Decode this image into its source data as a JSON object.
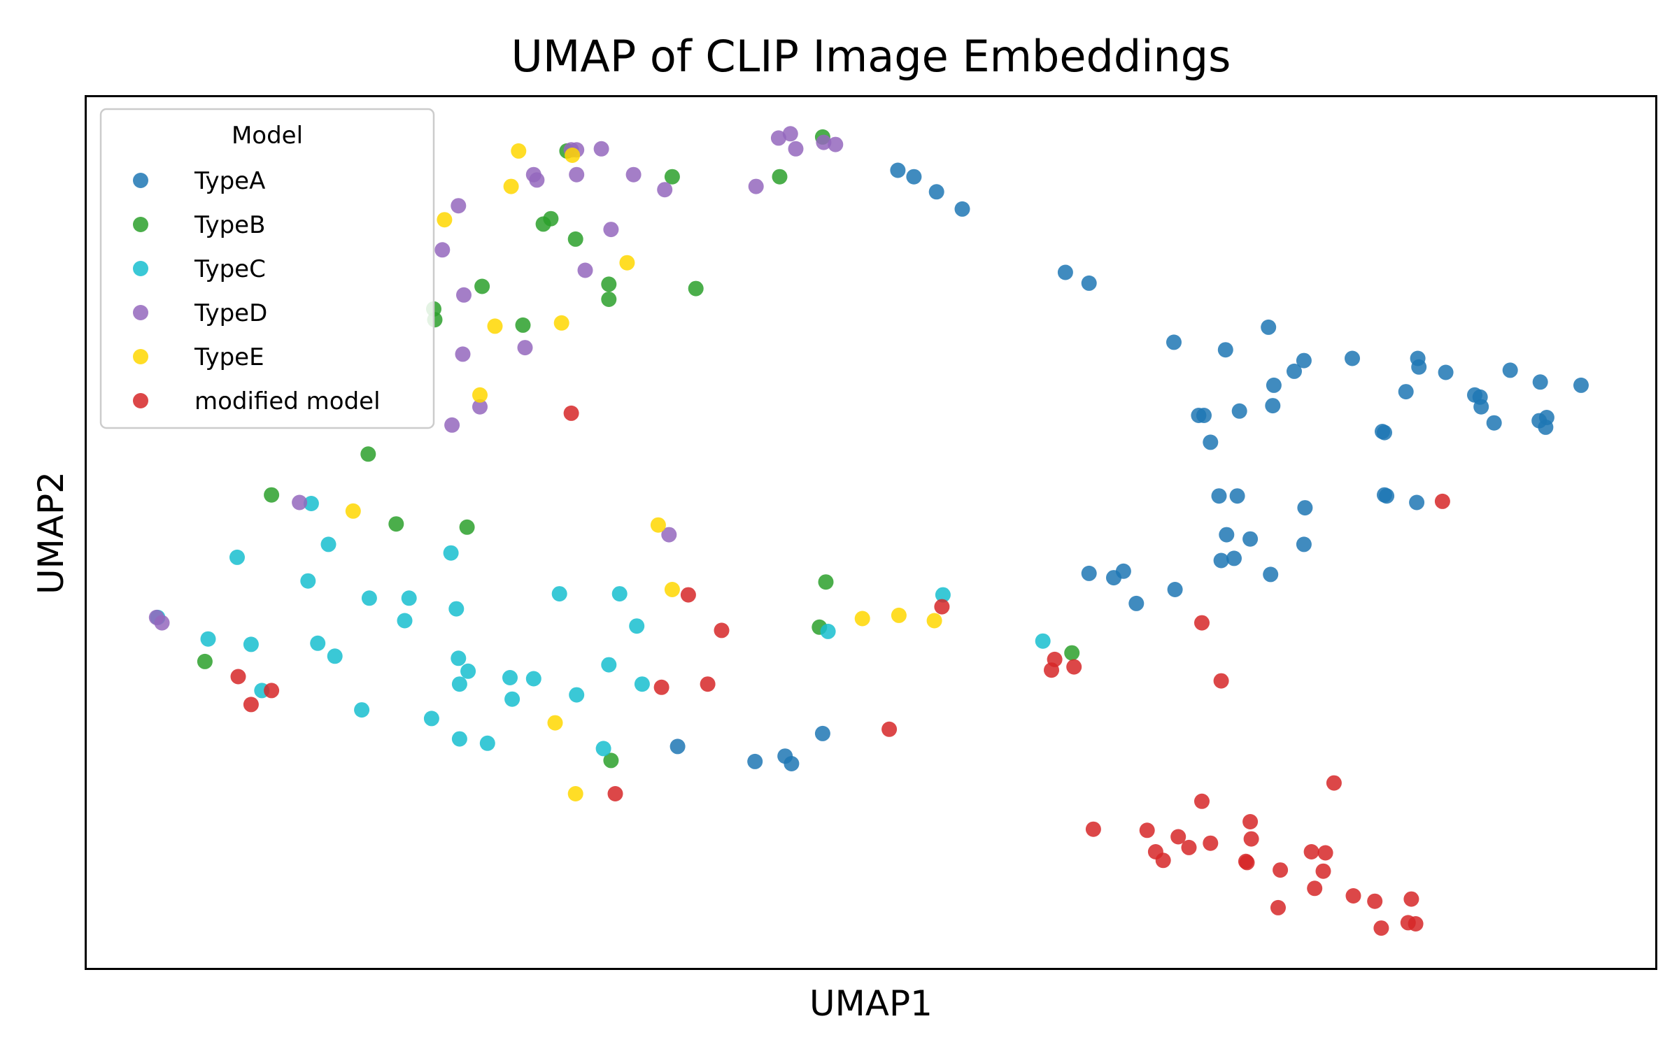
{
  "chart_data": {
    "type": "scatter",
    "title": "UMAP of CLIP Image Embeddings",
    "xlabel": "UMAP1",
    "ylabel": "UMAP2",
    "xlim": [
      0,
      1460
    ],
    "ylim": [
      0,
      810
    ],
    "ticks": "none",
    "grid": false,
    "legend": {
      "title": "Model",
      "placement": "top-left"
    },
    "series": [
      {
        "name": "TypeA",
        "color": "#1f77b4",
        "points": [
          [
            755,
            742
          ],
          [
            770,
            736
          ],
          [
            791,
            722
          ],
          [
            815,
            706
          ],
          [
            911,
            647
          ],
          [
            933,
            637
          ],
          [
            1012,
            582
          ],
          [
            1060,
            575
          ],
          [
            1100,
            596
          ],
          [
            1124,
            555
          ],
          [
            1105,
            542
          ],
          [
            1073,
            518
          ],
          [
            1104,
            523
          ],
          [
            1133,
            565
          ],
          [
            1178,
            567
          ],
          [
            1239,
            567
          ],
          [
            1240,
            559
          ],
          [
            1297,
            531
          ],
          [
            1265,
            554
          ],
          [
            1325,
            556
          ],
          [
            1353,
            545
          ],
          [
            1352,
            509
          ],
          [
            1292,
            533
          ],
          [
            1228,
            536
          ],
          [
            1298,
            522
          ],
          [
            1391,
            542
          ],
          [
            1035,
            514
          ],
          [
            1040,
            514
          ],
          [
            1046,
            489
          ],
          [
            1358,
            503
          ],
          [
            1359,
            512
          ],
          [
            1310,
            507
          ],
          [
            1206,
            499
          ],
          [
            1208,
            498
          ],
          [
            1054,
            439
          ],
          [
            1071,
            439
          ],
          [
            1134,
            428
          ],
          [
            1208,
            440
          ],
          [
            1238,
            433
          ],
          [
            1210,
            439
          ],
          [
            1061,
            403
          ],
          [
            1083,
            399
          ],
          [
            1133,
            394
          ],
          [
            1056,
            379
          ],
          [
            1068,
            381
          ],
          [
            1102,
            366
          ],
          [
            933,
            367
          ],
          [
            956,
            363
          ],
          [
            965,
            369
          ],
          [
            1013,
            352
          ],
          [
            977,
            339
          ],
          [
            550,
            206
          ],
          [
            622,
            192
          ],
          [
            650,
            197
          ],
          [
            656,
            190
          ],
          [
            685,
            218
          ]
        ]
      },
      {
        "name": "TypeB",
        "color": "#2ca02c",
        "points": [
          [
            447,
            760
          ],
          [
            545,
            736
          ],
          [
            685,
            773
          ],
          [
            645,
            736
          ],
          [
            425,
            692
          ],
          [
            432,
            697
          ],
          [
            455,
            678
          ],
          [
            486,
            636
          ],
          [
            567,
            632
          ],
          [
            323,
            613
          ],
          [
            324,
            603
          ],
          [
            406,
            598
          ],
          [
            368,
            634
          ],
          [
            486,
            622
          ],
          [
            262,
            478
          ],
          [
            172,
            440
          ],
          [
            288,
            413
          ],
          [
            354,
            410
          ],
          [
            688,
            359
          ],
          [
            682,
            317
          ],
          [
            917,
            293
          ],
          [
            110,
            285
          ],
          [
            488,
            193
          ]
        ]
      },
      {
        "name": "TypeC",
        "color": "#17becf",
        "points": [
          [
            209,
            432
          ],
          [
            225,
            394
          ],
          [
            140,
            382
          ],
          [
            206,
            360
          ],
          [
            339,
            386
          ],
          [
            263,
            344
          ],
          [
            300,
            344
          ],
          [
            496,
            348
          ],
          [
            344,
            334
          ],
          [
            440,
            348
          ],
          [
            296,
            323
          ],
          [
            512,
            318
          ],
          [
            66,
            326
          ],
          [
            113,
            306
          ],
          [
            153,
            301
          ],
          [
            215,
            302
          ],
          [
            231,
            290
          ],
          [
            346,
            288
          ],
          [
            355,
            276
          ],
          [
            486,
            282
          ],
          [
            394,
            270
          ],
          [
            416,
            269
          ],
          [
            517,
            264
          ],
          [
            347,
            264
          ],
          [
            396,
            250
          ],
          [
            256,
            240
          ],
          [
            321,
            232
          ],
          [
            456,
            254
          ],
          [
            347,
            213
          ],
          [
            373,
            209
          ],
          [
            481,
            204
          ],
          [
            797,
            347
          ],
          [
            690,
            313
          ],
          [
            890,
            304
          ],
          [
            163,
            258
          ]
        ]
      },
      {
        "name": "TypeD",
        "color": "#9467bd",
        "points": [
          [
            451,
            761
          ],
          [
            456,
            761
          ],
          [
            479,
            762
          ],
          [
            416,
            738
          ],
          [
            456,
            738
          ],
          [
            509,
            738
          ],
          [
            538,
            724
          ],
          [
            644,
            772
          ],
          [
            655,
            776
          ],
          [
            660,
            762
          ],
          [
            686,
            768
          ],
          [
            697,
            766
          ],
          [
            623,
            727
          ],
          [
            419,
            733
          ],
          [
            346,
            709
          ],
          [
            331,
            668
          ],
          [
            488,
            687
          ],
          [
            464,
            649
          ],
          [
            351,
            626
          ],
          [
            408,
            577
          ],
          [
            350,
            571
          ],
          [
            366,
            522
          ],
          [
            340,
            505
          ],
          [
            198,
            433
          ],
          [
            542,
            403
          ],
          [
            65,
            326
          ],
          [
            70,
            321
          ]
        ]
      },
      {
        "name": "TypeE",
        "color": "#ffd700",
        "points": [
          [
            402,
            760
          ],
          [
            452,
            756
          ],
          [
            395,
            727
          ],
          [
            333,
            696
          ],
          [
            503,
            656
          ],
          [
            380,
            597
          ],
          [
            442,
            600
          ],
          [
            366,
            533
          ],
          [
            248,
            425
          ],
          [
            532,
            412
          ],
          [
            545,
            352
          ],
          [
            722,
            325
          ],
          [
            756,
            328
          ],
          [
            789,
            323
          ],
          [
            436,
            228
          ],
          [
            455,
            162
          ]
        ]
      },
      {
        "name": "modified model",
        "color": "#d62728",
        "points": [
          [
            451,
            516
          ],
          [
            796,
            336
          ],
          [
            560,
            347
          ],
          [
            591,
            314
          ],
          [
            1262,
            434
          ],
          [
            1038,
            321
          ],
          [
            1056,
            267
          ],
          [
            141,
            271
          ],
          [
            172,
            258
          ],
          [
            153,
            245
          ],
          [
            535,
            261
          ],
          [
            578,
            264
          ],
          [
            747,
            222
          ],
          [
            901,
            287
          ],
          [
            898,
            277
          ],
          [
            919,
            280
          ],
          [
            492,
            162
          ],
          [
            1161,
            172
          ],
          [
            1038,
            155
          ],
          [
            937,
            129
          ],
          [
            987,
            128
          ],
          [
            1016,
            122
          ],
          [
            1083,
            136
          ],
          [
            1084,
            120
          ],
          [
            1046,
            116
          ],
          [
            1026,
            112
          ],
          [
            995,
            108
          ],
          [
            1002,
            100
          ],
          [
            1079,
            99
          ],
          [
            1080,
            98
          ],
          [
            1153,
            107
          ],
          [
            1140,
            108
          ],
          [
            1151,
            90
          ],
          [
            1111,
            91
          ],
          [
            1143,
            74
          ],
          [
            1179,
            67
          ],
          [
            1199,
            62
          ],
          [
            1233,
            64
          ],
          [
            1109,
            56
          ],
          [
            1230,
            42
          ],
          [
            1237,
            41
          ],
          [
            1205,
            37
          ]
        ]
      }
    ]
  }
}
